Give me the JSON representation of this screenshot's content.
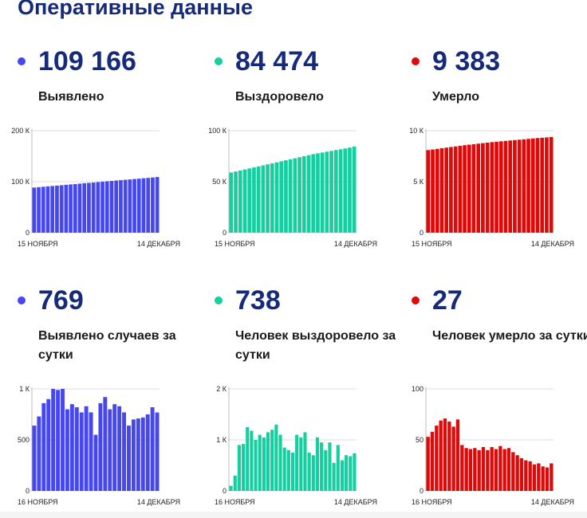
{
  "title": "Оперативные данные",
  "panels": [
    {
      "value": "109 166",
      "label": "Выявлено",
      "color": "#4747ee"
    },
    {
      "value": "84 474",
      "label": "Выздоровело",
      "color": "#16cfa0"
    },
    {
      "value": "9 383",
      "label": "Умерло",
      "color": "#de0a0a"
    },
    {
      "value": "769",
      "label": "Выявлено случаев за сутки",
      "color": "#4747ee"
    },
    {
      "value": "738",
      "label": "Человек выздоровело за сутки",
      "color": "#16cfa0"
    },
    {
      "value": "27",
      "label": "Человек умерло за сутки",
      "color": "#de0a0a"
    }
  ],
  "chart_data": [
    {
      "type": "bar",
      "color": "#4747ee",
      "yticks": [
        {
          "v": 0,
          "label": "0"
        },
        {
          "v": 100000,
          "label": "100 К"
        },
        {
          "v": 200000,
          "label": "200 К"
        }
      ],
      "ylim": [
        0,
        200000
      ],
      "xtick_labels": [
        "15 НОЯБРЯ",
        "14 ДЕКАБРЯ"
      ],
      "values": [
        88500,
        89300,
        90100,
        90800,
        91600,
        92300,
        93100,
        93900,
        94600,
        95400,
        96200,
        97000,
        97700,
        98400,
        99200,
        100000,
        100800,
        101500,
        102300,
        103000,
        103800,
        104500,
        105300,
        106000,
        106800,
        107500,
        108300,
        109166
      ]
    },
    {
      "type": "bar",
      "color": "#16cfa0",
      "yticks": [
        {
          "v": 0,
          "label": "0"
        },
        {
          "v": 50000,
          "label": "50 К"
        },
        {
          "v": 100000,
          "label": "100 К"
        }
      ],
      "ylim": [
        0,
        100000
      ],
      "xtick_labels": [
        "15 НОЯБРЯ",
        "14 ДЕКАБРЯ"
      ],
      "values": [
        59000,
        60000,
        61000,
        62000,
        63000,
        64000,
        65000,
        66000,
        67000,
        68000,
        69000,
        70000,
        71000,
        72000,
        73000,
        74000,
        75000,
        76000,
        77000,
        77800,
        78600,
        79400,
        80200,
        81000,
        81800,
        82600,
        83400,
        84474
      ]
    },
    {
      "type": "bar",
      "color": "#de0a0a",
      "yticks": [
        {
          "v": 0,
          "label": "0"
        },
        {
          "v": 5000,
          "label": "5 К"
        },
        {
          "v": 10000,
          "label": "10 К"
        }
      ],
      "ylim": [
        0,
        10000
      ],
      "xtick_labels": [
        "15 НОЯБРЯ",
        "14 ДЕКАБРЯ"
      ],
      "values": [
        8100,
        8160,
        8220,
        8280,
        8340,
        8400,
        8460,
        8520,
        8580,
        8630,
        8680,
        8730,
        8780,
        8830,
        8880,
        8920,
        8960,
        9000,
        9040,
        9080,
        9120,
        9160,
        9200,
        9240,
        9280,
        9310,
        9340,
        9383
      ]
    },
    {
      "type": "bar",
      "color": "#4747ee",
      "yticks": [
        {
          "v": 0,
          "label": "0"
        },
        {
          "v": 500,
          "label": "500"
        },
        {
          "v": 1000,
          "label": "1 К"
        }
      ],
      "ylim": [
        0,
        1000
      ],
      "xtick_labels": [
        "16 НОЯБРЯ",
        "14 ДЕКАБРЯ"
      ],
      "values": [
        640,
        730,
        860,
        900,
        1000,
        990,
        1000,
        800,
        850,
        820,
        770,
        830,
        770,
        550,
        860,
        920,
        800,
        850,
        830,
        770,
        640,
        700,
        710,
        720,
        750,
        820,
        769
      ]
    },
    {
      "type": "bar",
      "color": "#16cfa0",
      "yticks": [
        {
          "v": 0,
          "label": "0"
        },
        {
          "v": 1000,
          "label": "1 К"
        },
        {
          "v": 2000,
          "label": "2 К"
        }
      ],
      "ylim": [
        0,
        2000
      ],
      "xtick_labels": [
        "16 НОЯБРЯ",
        "14 ДЕКАБРЯ"
      ],
      "values": [
        100,
        300,
        900,
        920,
        1250,
        1180,
        1000,
        1100,
        1050,
        1150,
        1200,
        1300,
        1100,
        850,
        800,
        750,
        1100,
        1050,
        1150,
        750,
        700,
        1050,
        950,
        800,
        950,
        550,
        900,
        600,
        700,
        680,
        738
      ]
    },
    {
      "type": "bar",
      "color": "#de0a0a",
      "yticks": [
        {
          "v": 0,
          "label": "0"
        },
        {
          "v": 50,
          "label": "50"
        },
        {
          "v": 100,
          "label": "100"
        }
      ],
      "ylim": [
        0,
        100
      ],
      "xtick_labels": [
        "16 НОЯБРЯ",
        "14 ДЕКАБРЯ"
      ],
      "values": [
        53,
        58,
        64,
        69,
        71,
        68,
        63,
        70,
        45,
        42,
        41,
        42,
        40,
        43,
        40,
        43,
        41,
        44,
        41,
        42,
        38,
        35,
        32,
        30,
        29,
        26,
        27,
        24,
        23,
        27
      ]
    }
  ]
}
